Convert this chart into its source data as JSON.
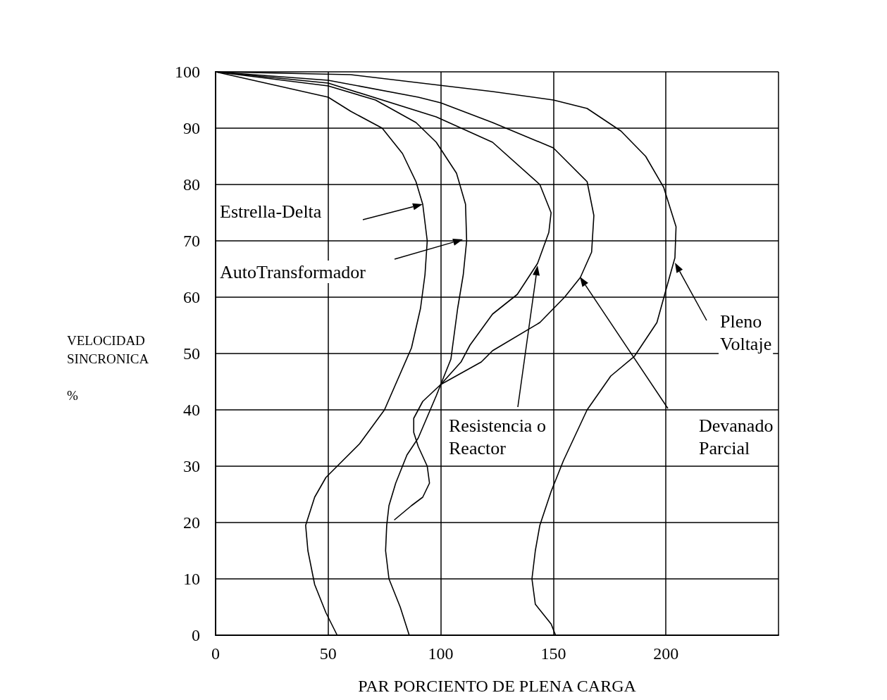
{
  "chart_data": {
    "type": "line",
    "xlabel": "PAR PORCIENTO DE PLENA CARGA",
    "ylabel": "VELOCIDAD\nSINCRONICA\n\n%",
    "xlim": [
      0,
      250
    ],
    "xticks": [
      0,
      50,
      100,
      150,
      200,
      {
        "value": 250,
        "label": null
      }
    ],
    "ylim": [
      0,
      100
    ],
    "yticks": [
      0,
      10,
      20,
      30,
      40,
      50,
      60,
      70,
      80,
      90,
      100
    ],
    "grid": true,
    "marker": "none",
    "line_style": "solid",
    "series": [
      {
        "color": "#000000",
        "x": [
          0,
          50,
          60,
          74,
          83,
          89,
          92,
          94,
          93,
          91,
          87,
          75,
          64,
          49,
          44,
          40,
          41,
          44,
          49,
          54
        ],
        "values": [
          100,
          95.5,
          93,
          90,
          85.5,
          80.5,
          76.5,
          70,
          64,
          58,
          51,
          40,
          34,
          28,
          24.5,
          19.5,
          15,
          9,
          4,
          0
        ]
      },
      {
        "color": "#000000",
        "x": [
          0,
          50,
          71,
          89,
          98,
          107,
          111,
          111.5,
          110,
          107.5,
          104.5,
          100,
          98,
          90,
          85,
          80,
          77,
          76,
          75.5,
          77,
          82,
          86
        ],
        "values": [
          100,
          97.5,
          95,
          91,
          87.5,
          82,
          76.5,
          70,
          64,
          58,
          49,
          44.5,
          42.5,
          35,
          32,
          27,
          23,
          19.5,
          15,
          10,
          5,
          0
        ]
      },
      {
        "color": "#000000",
        "x": [
          0,
          50,
          98,
          123,
          144,
          149,
          148,
          143,
          134,
          123,
          113,
          109,
          100,
          92,
          88,
          88,
          90,
          94,
          95,
          92,
          87,
          79.5
        ],
        "values": [
          100,
          98,
          92,
          87.5,
          80,
          75,
          71.5,
          66,
          60.5,
          57,
          51.5,
          48.5,
          44.5,
          41.5,
          38.5,
          36,
          33.5,
          30,
          27,
          24.5,
          23,
          20.5
        ]
      },
      {
        "color": "#000000",
        "x": [
          0,
          50,
          90,
          100,
          123,
          150,
          165,
          168,
          167,
          162,
          155,
          144,
          123,
          118,
          100
        ],
        "values": [
          100,
          98.5,
          95.5,
          94.5,
          91,
          86.5,
          80.5,
          74.5,
          68,
          63.5,
          60,
          55.5,
          50.5,
          48.5,
          44.5
        ]
      },
      {
        "color": "#000000",
        "x": [
          0,
          60,
          123,
          150,
          165,
          180,
          191,
          199,
          204.5,
          204,
          200.5,
          196,
          186,
          175.5,
          165,
          154.5,
          149,
          144,
          142,
          140.5,
          142,
          149,
          151
        ],
        "values": [
          100,
          99.5,
          96.5,
          95,
          93.5,
          89.5,
          85,
          79.5,
          72.5,
          67,
          62,
          55.5,
          49.5,
          46,
          40,
          31,
          25.5,
          19.5,
          15,
          10,
          5.5,
          2,
          0
        ]
      }
    ],
    "annotations": [
      "Estrella-Delta",
      "AutoTransformador",
      "Resistencia o\nReactor",
      "Devanado\nParcial",
      "Pleno\nVoltaje"
    ]
  }
}
